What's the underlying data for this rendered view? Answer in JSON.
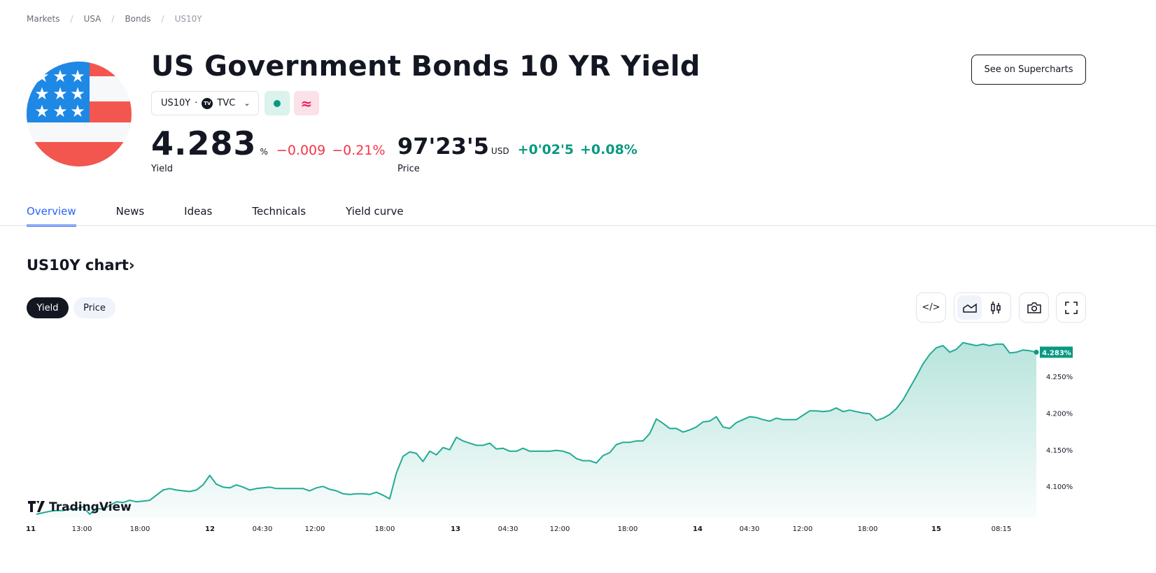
{
  "breadcrumb": [
    "Markets",
    "USA",
    "Bonds",
    "US10Y"
  ],
  "header": {
    "title": "US Government Bonds 10 YR Yield",
    "symbol": "US10Y",
    "dot": "·",
    "exchange": "TVC",
    "exchange_logo": "TV",
    "market_status_icon": "green-dot-icon",
    "delayed_icon": "approx-icon",
    "supercharts_label": "See on Supercharts"
  },
  "quote": {
    "yield_value": "4.283",
    "yield_unit": "%",
    "yield_change": "−0.009",
    "yield_change_pct": "−0.21%",
    "yield_label": "Yield",
    "price_value": "97'23'5",
    "price_unit": "USD",
    "price_change": "+0'02'5",
    "price_change_pct": "+0.08%",
    "price_label": "Price"
  },
  "tabs": [
    {
      "label": "Overview",
      "active": true
    },
    {
      "label": "News"
    },
    {
      "label": "Ideas"
    },
    {
      "label": "Technicals"
    },
    {
      "label": "Yield curve"
    }
  ],
  "chart_section": {
    "title": "US10Y chart",
    "title_arrow": "›",
    "toggle": [
      {
        "label": "Yield",
        "active": true
      },
      {
        "label": "Price"
      }
    ],
    "watermark": "TradingView"
  },
  "colors": {
    "accent": "#2962ff",
    "up": "#089981",
    "down": "#f23645",
    "line": "#22ab94"
  },
  "chart_data": {
    "type": "area",
    "last_value_label": "4.283%",
    "y_ticks": [
      "4.250%",
      "4.200%",
      "4.150%",
      "4.100%"
    ],
    "y_tick_values": [
      4.25,
      4.2,
      4.15,
      4.1
    ],
    "x_ticks": [
      "11",
      "13:00",
      "18:00",
      "12",
      "04:30",
      "12:00",
      "18:00",
      "13",
      "04:30",
      "12:00",
      "18:00",
      "14",
      "04:30",
      "12:00",
      "18:00",
      "15",
      "08:15"
    ],
    "ylim": [
      4.055,
      4.3
    ],
    "grid": false,
    "values": [
      4.062,
      4.064,
      4.066,
      4.067,
      4.067,
      4.069,
      4.07,
      4.072,
      4.062,
      4.07,
      4.069,
      4.074,
      4.079,
      4.078,
      4.081,
      4.079,
      4.08,
      4.081,
      4.088,
      4.095,
      4.097,
      4.095,
      4.094,
      4.093,
      4.095,
      4.102,
      4.115,
      4.103,
      4.099,
      4.098,
      4.102,
      4.099,
      4.095,
      4.097,
      4.098,
      4.099,
      4.097,
      4.097,
      4.097,
      4.097,
      4.097,
      4.094,
      4.098,
      4.1,
      4.096,
      4.094,
      4.09,
      4.089,
      4.09,
      4.09,
      4.089,
      4.092,
      4.088,
      4.083,
      4.118,
      4.141,
      4.147,
      4.145,
      4.134,
      4.148,
      4.143,
      4.153,
      4.15,
      4.167,
      4.162,
      4.159,
      4.156,
      4.156,
      4.159,
      4.151,
      4.152,
      4.148,
      4.148,
      4.152,
      4.148,
      4.148,
      4.148,
      4.148,
      4.149,
      4.148,
      4.145,
      4.138,
      4.135,
      4.135,
      4.132,
      4.142,
      4.146,
      4.157,
      4.16,
      4.16,
      4.162,
      4.162,
      4.172,
      4.192,
      4.186,
      4.179,
      4.179,
      4.174,
      4.177,
      4.181,
      4.188,
      4.189,
      4.195,
      4.181,
      4.179,
      4.187,
      4.191,
      4.195,
      4.194,
      4.191,
      4.189,
      4.193,
      4.191,
      4.191,
      4.191,
      4.197,
      4.203,
      4.203,
      4.202,
      4.203,
      4.207,
      4.202,
      4.204,
      4.202,
      4.2,
      4.199,
      4.19,
      4.193,
      4.198,
      4.206,
      4.218,
      4.234,
      4.25,
      4.267,
      4.28,
      4.289,
      4.292,
      4.283,
      4.287,
      4.296,
      4.294,
      4.292,
      4.294,
      4.292,
      4.294,
      4.294,
      4.282,
      4.283,
      4.286,
      4.285,
      4.283
    ]
  }
}
